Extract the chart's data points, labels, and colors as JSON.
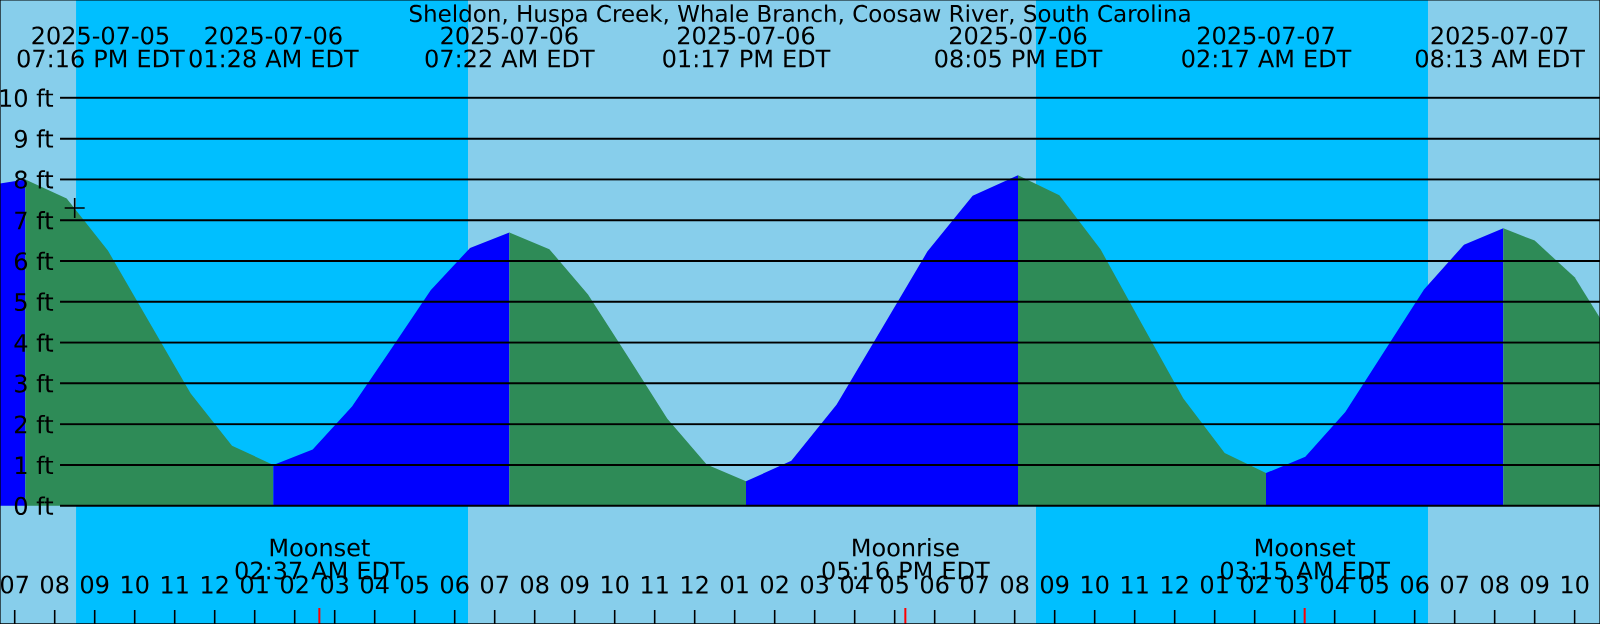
{
  "chart_data": {
    "type": "area",
    "title": "Sheldon, Huspa Creek, Whale Branch, Coosaw River, South Carolina",
    "xlim": [
      "2025-07-05T18:38",
      "2025-07-07T10:38"
    ],
    "ylim": [
      -2.9,
      12.4
    ],
    "grid": "y",
    "yticks": [
      {
        "value": 0,
        "label": "0 ft"
      },
      {
        "value": 1,
        "label": "1 ft"
      },
      {
        "value": 2,
        "label": "2 ft"
      },
      {
        "value": 3,
        "label": "3 ft"
      },
      {
        "value": 4,
        "label": "4 ft"
      },
      {
        "value": 5,
        "label": "5 ft"
      },
      {
        "value": 6,
        "label": "6 ft"
      },
      {
        "value": 7,
        "label": "7 ft"
      },
      {
        "value": 8,
        "label": "8 ft"
      },
      {
        "value": 9,
        "label": "9 ft"
      },
      {
        "value": 10,
        "label": "10 ft"
      }
    ],
    "xticks": [
      {
        "value": "2025-07-05T19:00",
        "label": "07"
      },
      {
        "value": "2025-07-05T20:00",
        "label": "08"
      },
      {
        "value": "2025-07-05T21:00",
        "label": "09"
      },
      {
        "value": "2025-07-05T22:00",
        "label": "10"
      },
      {
        "value": "2025-07-05T23:00",
        "label": "11"
      },
      {
        "value": "2025-07-06T00:00",
        "label": "12"
      },
      {
        "value": "2025-07-06T01:00",
        "label": "01"
      },
      {
        "value": "2025-07-06T02:00",
        "label": "02"
      },
      {
        "value": "2025-07-06T03:00",
        "label": "03"
      },
      {
        "value": "2025-07-06T04:00",
        "label": "04"
      },
      {
        "value": "2025-07-06T05:00",
        "label": "05"
      },
      {
        "value": "2025-07-06T06:00",
        "label": "06"
      },
      {
        "value": "2025-07-06T07:00",
        "label": "07"
      },
      {
        "value": "2025-07-06T08:00",
        "label": "08"
      },
      {
        "value": "2025-07-06T09:00",
        "label": "09"
      },
      {
        "value": "2025-07-06T10:00",
        "label": "10"
      },
      {
        "value": "2025-07-06T11:00",
        "label": "11"
      },
      {
        "value": "2025-07-06T12:00",
        "label": "12"
      },
      {
        "value": "2025-07-06T13:00",
        "label": "01"
      },
      {
        "value": "2025-07-06T14:00",
        "label": "02"
      },
      {
        "value": "2025-07-06T15:00",
        "label": "03"
      },
      {
        "value": "2025-07-06T16:00",
        "label": "04"
      },
      {
        "value": "2025-07-06T17:00",
        "label": "05"
      },
      {
        "value": "2025-07-06T18:00",
        "label": "06"
      },
      {
        "value": "2025-07-06T19:00",
        "label": "07"
      },
      {
        "value": "2025-07-06T20:00",
        "label": "08"
      },
      {
        "value": "2025-07-06T21:00",
        "label": "09"
      },
      {
        "value": "2025-07-06T22:00",
        "label": "10"
      },
      {
        "value": "2025-07-06T23:00",
        "label": "11"
      },
      {
        "value": "2025-07-07T00:00",
        "label": "12"
      },
      {
        "value": "2025-07-07T01:00",
        "label": "01"
      },
      {
        "value": "2025-07-07T02:00",
        "label": "02"
      },
      {
        "value": "2025-07-07T03:00",
        "label": "03"
      },
      {
        "value": "2025-07-07T04:00",
        "label": "04"
      },
      {
        "value": "2025-07-07T05:00",
        "label": "05"
      },
      {
        "value": "2025-07-07T06:00",
        "label": "06"
      },
      {
        "value": "2025-07-07T07:00",
        "label": "07"
      },
      {
        "value": "2025-07-07T08:00",
        "label": "08"
      },
      {
        "value": "2025-07-07T09:00",
        "label": "09"
      },
      {
        "value": "2025-07-07T10:00",
        "label": "10"
      }
    ],
    "bands": [
      {
        "axis": "x",
        "from": "2025-07-05T18:38",
        "to": "2025-07-05T20:32",
        "color": "#87ceeb"
      },
      {
        "axis": "x",
        "from": "2025-07-05T20:32",
        "to": "2025-07-06T06:20",
        "color": "#00bfff"
      },
      {
        "axis": "x",
        "from": "2025-07-06T06:20",
        "to": "2025-07-06T20:32",
        "color": "#87ceeb"
      },
      {
        "axis": "x",
        "from": "2025-07-06T20:32",
        "to": "2025-07-07T06:20",
        "color": "#00bfff"
      },
      {
        "axis": "x",
        "from": "2025-07-07T06:20",
        "to": "2025-07-07T10:38",
        "color": "#87ceeb"
      }
    ],
    "series": [
      {
        "color": "#0000ff",
        "x": [
          "2025-07-05T18:38",
          "2025-07-05T19:16"
        ],
        "values": [
          7.9,
          8.0
        ]
      },
      {
        "color": "#2e8b57",
        "x": [
          "2025-07-05T19:16",
          "2025-07-05T20:18",
          "2025-07-05T21:20",
          "2025-07-05T22:22",
          "2025-07-05T23:24",
          "2025-07-06T00:26",
          "2025-07-06T01:28"
        ],
        "values": [
          8.0,
          7.53,
          6.25,
          4.5,
          2.75,
          1.47,
          1.0
        ]
      },
      {
        "color": "#0000ff",
        "x": [
          "2025-07-06T01:28",
          "2025-07-06T02:27",
          "2025-07-06T03:26",
          "2025-07-06T04:25",
          "2025-07-06T05:24",
          "2025-07-06T06:23",
          "2025-07-06T07:22"
        ],
        "values": [
          1.0,
          1.38,
          2.43,
          3.85,
          5.28,
          6.32,
          6.7
        ]
      },
      {
        "color": "#2e8b57",
        "x": [
          "2025-07-06T07:22",
          "2025-07-06T08:22",
          "2025-07-06T09:20",
          "2025-07-06T10:20",
          "2025-07-06T11:19",
          "2025-07-06T12:18",
          "2025-07-06T13:17"
        ],
        "values": [
          6.7,
          6.29,
          5.18,
          3.65,
          2.13,
          1.01,
          0.6
        ]
      },
      {
        "color": "#0000ff",
        "x": [
          "2025-07-06T13:17",
          "2025-07-06T14:25",
          "2025-07-06T15:33",
          "2025-07-06T16:41",
          "2025-07-06T17:49",
          "2025-07-06T18:57",
          "2025-07-06T20:05"
        ],
        "values": [
          0.6,
          1.1,
          2.48,
          4.35,
          6.23,
          7.6,
          8.1
        ]
      },
      {
        "color": "#2e8b57",
        "x": [
          "2025-07-06T20:05",
          "2025-07-06T21:07",
          "2025-07-06T22:09",
          "2025-07-06T23:11",
          "2025-07-07T00:13",
          "2025-07-07T01:15",
          "2025-07-07T02:17"
        ],
        "values": [
          8.1,
          7.61,
          6.28,
          4.45,
          2.63,
          1.29,
          0.8
        ]
      },
      {
        "color": "#0000ff",
        "x": [
          "2025-07-07T02:17",
          "2025-07-07T03:16",
          "2025-07-07T04:16",
          "2025-07-07T05:15",
          "2025-07-07T06:14",
          "2025-07-07T07:14",
          "2025-07-07T08:13"
        ],
        "values": [
          0.8,
          1.2,
          2.3,
          3.8,
          5.3,
          6.4,
          6.8
        ]
      },
      {
        "color": "#2e8b57",
        "x": [
          "2025-07-07T08:13",
          "2025-07-07T09:00",
          "2025-07-07T10:00",
          "2025-07-07T10:38"
        ],
        "values": [
          6.8,
          6.5,
          5.6,
          4.6
        ]
      },
      {
        "type": "scatter",
        "marker": "cross",
        "color": "#000000",
        "x": [
          "2025-07-05T20:30"
        ],
        "values": [
          7.3
        ]
      }
    ],
    "annotations": [
      "2025-07-05 07:16 PM EDT",
      "2025-07-06 01:28 AM EDT",
      "2025-07-06 07:22 AM EDT",
      "2025-07-06 01:17 PM EDT",
      "2025-07-06 08:05 PM EDT",
      "2025-07-07 02:17 AM EDT",
      "2025-07-07 08:13 AM EDT"
    ],
    "ref_lines": [
      {
        "axis": "x",
        "value": "2025-07-06T02:37",
        "label": "Moonset 02:37 AM EDT",
        "color": "#ff0000"
      },
      {
        "axis": "x",
        "value": "2025-07-06T17:16",
        "label": "Moonrise 05:16 PM EDT",
        "color": "#ff0000"
      },
      {
        "axis": "x",
        "value": "2025-07-07T03:15",
        "label": "Moonset 03:15 AM EDT",
        "color": "#ff0000"
      }
    ]
  }
}
